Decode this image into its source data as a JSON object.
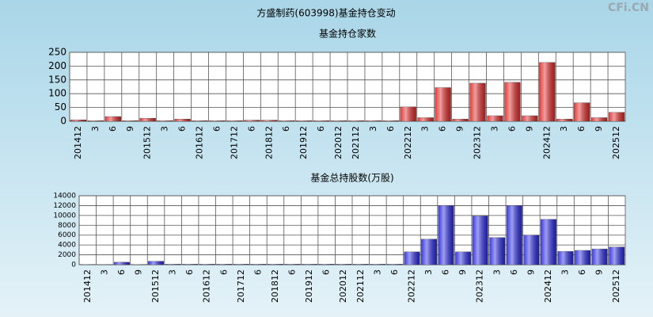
{
  "title": "方盛制药(603998)基金持仓变动",
  "watermark": "CFi.CN",
  "chart_data": [
    {
      "type": "bar",
      "title": "基金持仓家数",
      "categories": [
        "201412",
        "3",
        "6",
        "9",
        "201512",
        "3",
        "6",
        "201612",
        "6",
        "201712",
        "6",
        "201812",
        "6",
        "201912",
        "6",
        "202012",
        "202112",
        "3",
        "6",
        "202212",
        "3",
        "6",
        "9",
        "202312",
        "3",
        "6",
        "9",
        "202412",
        "3",
        "6",
        "9",
        "202512"
      ],
      "values": [
        5,
        2,
        17,
        2,
        11,
        2,
        8,
        2,
        2,
        2,
        4,
        4,
        2,
        2,
        2,
        2,
        2,
        2,
        2,
        52,
        13,
        122,
        8,
        138,
        20,
        141,
        20,
        213,
        8,
        67,
        13,
        32
      ],
      "color": "#e02828",
      "ylim": [
        0,
        250
      ],
      "yticks": [
        0,
        50,
        100,
        150,
        200,
        250
      ],
      "grid": true
    },
    {
      "type": "bar",
      "title": "基金总持股数(万股)",
      "categories": [
        "201412",
        "3",
        "6",
        "9",
        "201512",
        "3",
        "6",
        "201612",
        "6",
        "201712",
        "6",
        "201812",
        "6",
        "201912",
        "6",
        "202012",
        "202112",
        "3",
        "6",
        "202212",
        "3",
        "6",
        "9",
        "202312",
        "3",
        "6",
        "9",
        "202412",
        "3",
        "6",
        "9",
        "202512"
      ],
      "values": [
        50,
        30,
        500,
        50,
        700,
        100,
        100,
        100,
        100,
        100,
        100,
        100,
        100,
        100,
        100,
        100,
        100,
        100,
        100,
        2600,
        5200,
        12000,
        2600,
        9900,
        5500,
        12000,
        6000,
        9200,
        2700,
        2900,
        3200,
        3600
      ],
      "color": "#2828e0",
      "ylim": [
        0,
        14000
      ],
      "yticks": [
        0,
        2000,
        4000,
        6000,
        8000,
        10000,
        12000,
        14000
      ],
      "grid": true
    }
  ]
}
